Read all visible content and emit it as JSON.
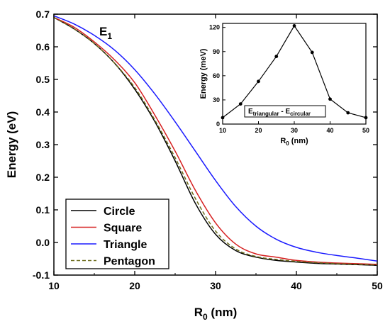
{
  "chart_data": [
    {
      "type": "line",
      "title": "",
      "annotation": "E",
      "annotation_sub": "1",
      "xlabel": "R",
      "xlabel_sub": "0",
      "xlabel_unit": " (nm)",
      "ylabel": "Energy (eV)",
      "xlim": [
        10,
        50
      ],
      "ylim": [
        -0.1,
        0.7
      ],
      "xticks": [
        10,
        20,
        30,
        40,
        50
      ],
      "yticks": [
        -0.1,
        0.0,
        0.1,
        0.2,
        0.3,
        0.4,
        0.5,
        0.6,
        0.7
      ],
      "grid": false,
      "legend_position": "bottom-left",
      "x": [
        10,
        12.5,
        15,
        17.5,
        20,
        22.5,
        25,
        27.5,
        30,
        32.5,
        35,
        37.5,
        40,
        42.5,
        45,
        47.5,
        50
      ],
      "series": [
        {
          "name": "Circle",
          "color": "#000000",
          "dash": "solid",
          "values": [
            0.69,
            0.655,
            0.61,
            0.55,
            0.47,
            0.37,
            0.25,
            0.12,
            0.025,
            -0.025,
            -0.045,
            -0.055,
            -0.06,
            -0.064,
            -0.066,
            -0.068,
            -0.07
          ]
        },
        {
          "name": "Square",
          "color": "#d62020",
          "dash": "solid",
          "values": [
            0.69,
            0.66,
            0.615,
            0.56,
            0.49,
            0.39,
            0.28,
            0.16,
            0.06,
            -0.005,
            -0.035,
            -0.045,
            -0.055,
            -0.06,
            -0.063,
            -0.065,
            -0.067
          ]
        },
        {
          "name": "Triangle",
          "color": "#1a1aff",
          "dash": "solid",
          "values": [
            0.695,
            0.67,
            0.635,
            0.59,
            0.53,
            0.455,
            0.37,
            0.28,
            0.19,
            0.11,
            0.05,
            0.01,
            -0.015,
            -0.03,
            -0.04,
            -0.048,
            -0.057
          ]
        },
        {
          "name": "Pentagon",
          "color": "#6b6b1a",
          "dash": "dashed",
          "values": [
            0.69,
            0.655,
            0.61,
            0.55,
            0.475,
            0.375,
            0.26,
            0.135,
            0.035,
            -0.02,
            -0.043,
            -0.052,
            -0.058,
            -0.062,
            -0.065,
            -0.067,
            -0.069
          ]
        }
      ]
    },
    {
      "type": "line",
      "title": "",
      "inset": true,
      "annotation": "E",
      "annotation_sub1": "triangular",
      "annotation_mid": " - E",
      "annotation_sub2": "circular",
      "xlabel": "R",
      "xlabel_sub": "0",
      "xlabel_unit": " (nm)",
      "ylabel": "Energy (meV)",
      "xlim": [
        10,
        50
      ],
      "ylim": [
        0,
        125
      ],
      "xticks": [
        10,
        20,
        30,
        40,
        50
      ],
      "yticks": [
        0,
        30,
        60,
        90,
        120
      ],
      "grid": false,
      "markers": true,
      "x": [
        10,
        15,
        20,
        25,
        30,
        35,
        40,
        45,
        50
      ],
      "series": [
        {
          "color": "#000000",
          "values": [
            8,
            25,
            53,
            84,
            122,
            89,
            31,
            14,
            8
          ]
        }
      ]
    }
  ]
}
